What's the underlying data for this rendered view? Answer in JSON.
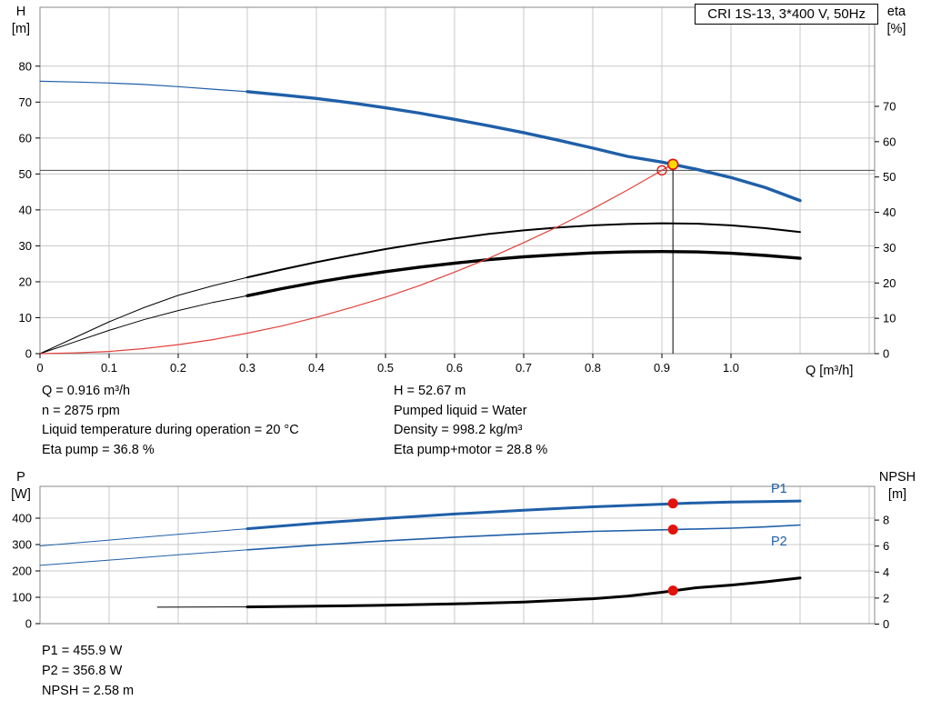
{
  "title_box": "CRI 1S-13, 3*400 V, 50Hz",
  "colors": {
    "blue": "#1f5fa8",
    "black": "#000000",
    "red": "#e2403a",
    "marker_red": "#e3120b",
    "duty_yellow": "#ffd800",
    "grid": "#c8c8c8",
    "frame": "#888888",
    "ref_line": "#4a4a4a"
  },
  "axes": {
    "top_left_title": "H",
    "top_left_unit": "[m]",
    "top_right_title": "eta",
    "top_right_unit": "[%]",
    "x_title": "Q [m³/h]",
    "bottom_left_title": "P",
    "bottom_left_unit": "[W]",
    "bottom_right_title": "NPSH",
    "bottom_right_unit": "[m]"
  },
  "curve_labels": {
    "p1": "P1",
    "p2": "P2"
  },
  "info_left": [
    "Q = 0.916 m³/h",
    "n = 2875 rpm",
    "Liquid temperature during operation = 20 °C",
    "Eta pump = 36.8 %"
  ],
  "info_right": [
    "H = 52.67 m",
    "Pumped liquid = Water",
    "Density = 998.2 kg/m³",
    "Eta pump+motor = 28.8 %"
  ],
  "info_bottom": [
    "P1 = 455.9 W",
    "P2 = 356.8 W",
    "NPSH = 2.58 m"
  ],
  "chart_data": [
    {
      "type": "line",
      "title": "CRI 1S-13, 3*400 V, 50Hz",
      "xlabel": "Q [m³/h]",
      "ylabel_left": "H [m]",
      "ylabel_right": "eta [%]",
      "xlim": [
        0,
        1.21
      ],
      "ylim_left": [
        0,
        96.5
      ],
      "ylim_right": [
        0,
        98
      ],
      "grid": true,
      "x_tick_values": [
        0,
        0.1,
        0.2,
        0.3,
        0.4,
        0.5,
        0.6,
        0.7,
        0.8,
        0.9,
        1.0
      ],
      "x_tick_labels": [
        "0",
        "0.1",
        "0.2",
        "0.3",
        "0.4",
        "0.5",
        "0.6",
        "0.7",
        "0.8",
        "0.9",
        "1.0"
      ],
      "left_ticks": [
        0,
        10,
        20,
        30,
        40,
        50,
        60,
        70,
        80
      ],
      "right_ticks": [
        0,
        10,
        20,
        30,
        40,
        50,
        60,
        70
      ],
      "grid_x": [
        0.1,
        0.2,
        0.3,
        0.4,
        0.5,
        0.6,
        0.7,
        0.8,
        0.9,
        1.0,
        1.1,
        1.2
      ],
      "grid_y": [
        10,
        20,
        30,
        40,
        50,
        60,
        70,
        80
      ],
      "ref_lines": {
        "horizontal_h": 51,
        "vertical_q": 0.916,
        "vertical_top_h": 52.67
      },
      "operating_point": {
        "q_m3h": 0.916,
        "h_m": 52.67,
        "eta_pump_pct": 36.8,
        "eta_pump_motor_pct": 28.8
      },
      "series": [
        {
          "name": "head-curve-lead",
          "axis": "H",
          "color": "blue",
          "width": 1.2,
          "points": [
            [
              0,
              75.8
            ],
            [
              0.05,
              75.6
            ],
            [
              0.1,
              75.3
            ],
            [
              0.15,
              74.9
            ],
            [
              0.2,
              74.3
            ],
            [
              0.25,
              73.6
            ],
            [
              0.3,
              72.9
            ]
          ]
        },
        {
          "name": "head-curve",
          "axis": "H",
          "color": "blue",
          "width": 3.4,
          "points": [
            [
              0.3,
              72.9
            ],
            [
              0.35,
              72.0
            ],
            [
              0.4,
              71.0
            ],
            [
              0.45,
              69.8
            ],
            [
              0.5,
              68.4
            ],
            [
              0.55,
              66.9
            ],
            [
              0.6,
              65.2
            ],
            [
              0.65,
              63.4
            ],
            [
              0.7,
              61.5
            ],
            [
              0.75,
              59.4
            ],
            [
              0.8,
              57.2
            ],
            [
              0.85,
              54.9
            ],
            [
              0.9,
              53.3
            ],
            [
              0.95,
              51.3
            ],
            [
              1.0,
              49.0
            ],
            [
              1.05,
              46.2
            ],
            [
              1.1,
              42.6
            ]
          ]
        },
        {
          "name": "eta-pump-curve-lead",
          "axis": "eta",
          "color": "black",
          "width": 1,
          "points": [
            [
              0,
              0
            ],
            [
              0.05,
              4.5
            ],
            [
              0.1,
              9.0
            ],
            [
              0.15,
              13.0
            ],
            [
              0.2,
              16.5
            ],
            [
              0.25,
              19.2
            ],
            [
              0.3,
              21.6
            ]
          ]
        },
        {
          "name": "eta-pump-curve",
          "axis": "eta",
          "color": "black",
          "width": 2,
          "points": [
            [
              0.3,
              21.6
            ],
            [
              0.35,
              23.8
            ],
            [
              0.4,
              25.9
            ],
            [
              0.45,
              27.8
            ],
            [
              0.5,
              29.6
            ],
            [
              0.55,
              31.2
            ],
            [
              0.6,
              32.6
            ],
            [
              0.65,
              33.9
            ],
            [
              0.7,
              34.9
            ],
            [
              0.75,
              35.7
            ],
            [
              0.8,
              36.3
            ],
            [
              0.85,
              36.7
            ],
            [
              0.9,
              36.9
            ],
            [
              0.95,
              36.8
            ],
            [
              1.0,
              36.3
            ],
            [
              1.05,
              35.5
            ],
            [
              1.1,
              34.4
            ]
          ]
        },
        {
          "name": "eta-pump-motor-curve-lead",
          "axis": "eta",
          "color": "black",
          "width": 1,
          "points": [
            [
              0,
              0
            ],
            [
              0.05,
              3.3
            ],
            [
              0.1,
              6.6
            ],
            [
              0.15,
              9.6
            ],
            [
              0.2,
              12.2
            ],
            [
              0.25,
              14.5
            ],
            [
              0.3,
              16.4
            ]
          ]
        },
        {
          "name": "eta-pump-motor-curve",
          "axis": "eta",
          "color": "black",
          "width": 3.4,
          "points": [
            [
              0.3,
              16.4
            ],
            [
              0.35,
              18.4
            ],
            [
              0.4,
              20.2
            ],
            [
              0.45,
              21.8
            ],
            [
              0.5,
              23.2
            ],
            [
              0.55,
              24.5
            ],
            [
              0.6,
              25.6
            ],
            [
              0.65,
              26.6
            ],
            [
              0.7,
              27.4
            ],
            [
              0.75,
              28.0
            ],
            [
              0.8,
              28.5
            ],
            [
              0.85,
              28.8
            ],
            [
              0.9,
              28.9
            ],
            [
              0.95,
              28.8
            ],
            [
              1.0,
              28.4
            ],
            [
              1.05,
              27.8
            ],
            [
              1.1,
              27.0
            ]
          ]
        },
        {
          "name": "system-curve",
          "axis": "H",
          "color": "red",
          "width": 1.2,
          "points": [
            [
              0,
              0
            ],
            [
              0.05,
              0.2
            ],
            [
              0.1,
              0.6
            ],
            [
              0.15,
              1.4
            ],
            [
              0.2,
              2.5
            ],
            [
              0.25,
              3.9
            ],
            [
              0.3,
              5.7
            ],
            [
              0.35,
              7.7
            ],
            [
              0.4,
              10.1
            ],
            [
              0.45,
              12.8
            ],
            [
              0.5,
              15.7
            ],
            [
              0.55,
              19.0
            ],
            [
              0.6,
              22.7
            ],
            [
              0.65,
              26.6
            ],
            [
              0.7,
              30.9
            ],
            [
              0.75,
              35.4
            ],
            [
              0.8,
              40.3
            ],
            [
              0.85,
              45.5
            ],
            [
              0.9,
              51.0
            ],
            [
              0.916,
              52.8
            ]
          ]
        }
      ],
      "markers": [
        {
          "name": "requested-duty-point",
          "axis": "H",
          "q": 0.9,
          "value": 51,
          "style": "open"
        },
        {
          "name": "operating-point",
          "axis": "H",
          "q": 0.916,
          "value": 52.67,
          "style": "duty"
        }
      ]
    },
    {
      "type": "line",
      "ylabel_left": "P [W]",
      "ylabel_right": "NPSH [m]",
      "xlim": [
        0,
        1.21
      ],
      "ylim_left": [
        0,
        520
      ],
      "ylim_right": [
        0,
        10.6
      ],
      "grid": true,
      "left_ticks": [
        0,
        100,
        200,
        300,
        400
      ],
      "right_ticks": [
        0,
        2,
        4,
        6,
        8
      ],
      "grid_x": [
        0.1,
        0.2,
        0.3,
        0.4,
        0.5,
        0.6,
        0.7,
        0.8,
        0.9,
        1.0,
        1.1,
        1.2
      ],
      "grid_y": [
        100,
        200,
        300,
        400
      ],
      "operating_point": {
        "q_m3h": 0.916,
        "p1_w": 455.9,
        "p2_w": 356.8,
        "npsh_m": 2.58
      },
      "series": [
        {
          "name": "p1-curve-lead",
          "axis": "P",
          "color": "blue",
          "width": 1,
          "points": [
            [
              0,
              295
            ],
            [
              0.1,
              317
            ],
            [
              0.2,
              339
            ],
            [
              0.3,
              360
            ]
          ]
        },
        {
          "name": "p1-curve",
          "axis": "P",
          "color": "blue",
          "width": 3,
          "points": [
            [
              0.3,
              360
            ],
            [
              0.4,
              381
            ],
            [
              0.5,
              399
            ],
            [
              0.6,
              416
            ],
            [
              0.7,
              430
            ],
            [
              0.8,
              443
            ],
            [
              0.9,
              453
            ],
            [
              0.95,
              458
            ],
            [
              1.0,
              461
            ],
            [
              1.05,
              463
            ],
            [
              1.1,
              465
            ]
          ]
        },
        {
          "name": "p2-curve-lead",
          "axis": "P",
          "color": "blue",
          "width": 1,
          "points": [
            [
              0,
              221
            ],
            [
              0.1,
              241
            ],
            [
              0.2,
              261
            ],
            [
              0.3,
              280
            ]
          ]
        },
        {
          "name": "p2-curve",
          "axis": "P",
          "color": "blue",
          "width": 1.6,
          "points": [
            [
              0.3,
              280
            ],
            [
              0.4,
              298
            ],
            [
              0.5,
              314
            ],
            [
              0.6,
              328
            ],
            [
              0.7,
              340
            ],
            [
              0.8,
              350
            ],
            [
              0.9,
              356
            ],
            [
              0.95,
              359
            ],
            [
              1.0,
              362
            ],
            [
              1.05,
              367
            ],
            [
              1.1,
              374
            ]
          ]
        },
        {
          "name": "npsh-curve-lead",
          "axis": "NPSH",
          "color": "black",
          "width": 1,
          "points": [
            [
              0.17,
              1.3
            ],
            [
              0.3,
              1.32
            ]
          ]
        },
        {
          "name": "npsh-curve",
          "axis": "NPSH",
          "color": "black",
          "width": 3,
          "points": [
            [
              0.3,
              1.32
            ],
            [
              0.4,
              1.38
            ],
            [
              0.5,
              1.45
            ],
            [
              0.6,
              1.55
            ],
            [
              0.7,
              1.7
            ],
            [
              0.8,
              1.95
            ],
            [
              0.85,
              2.15
            ],
            [
              0.9,
              2.45
            ],
            [
              0.95,
              2.8
            ],
            [
              1.0,
              3.0
            ],
            [
              1.05,
              3.25
            ],
            [
              1.1,
              3.55
            ]
          ]
        }
      ],
      "markers": [
        {
          "name": "p1-point",
          "axis": "P",
          "q": 0.916,
          "value": 455.9,
          "style": "red"
        },
        {
          "name": "p2-point",
          "axis": "P",
          "q": 0.916,
          "value": 356.8,
          "style": "red"
        },
        {
          "name": "npsh-point",
          "axis": "NPSH",
          "q": 0.916,
          "value": 2.58,
          "style": "red"
        }
      ]
    }
  ]
}
